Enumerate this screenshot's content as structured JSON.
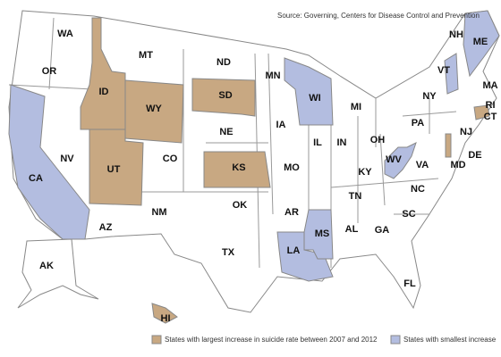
{
  "source": "Source: Governing, Centers for Disease Control and Prevention",
  "states": [
    {
      "label": "WA",
      "color": "#ffffff"
    },
    {
      "label": "OR",
      "color": "#ffffff"
    },
    {
      "label": "CA",
      "color": "#b3bde0"
    },
    {
      "label": "NV",
      "color": "#ffffff"
    },
    {
      "label": "ID",
      "color": "#c8a882"
    },
    {
      "label": "MT",
      "color": "#ffffff"
    },
    {
      "label": "WY",
      "color": "#c8a882"
    },
    {
      "label": "UT",
      "color": "#c8a882"
    },
    {
      "label": "CO",
      "color": "#ffffff"
    },
    {
      "label": "AZ",
      "color": "#ffffff"
    },
    {
      "label": "NM",
      "color": "#ffffff"
    },
    {
      "label": "ND",
      "color": "#ffffff"
    },
    {
      "label": "SD",
      "color": "#c8a882"
    },
    {
      "label": "NE",
      "color": "#ffffff"
    },
    {
      "label": "KS",
      "color": "#c8a882"
    },
    {
      "label": "OK",
      "color": "#ffffff"
    },
    {
      "label": "TX",
      "color": "#ffffff"
    },
    {
      "label": "MN",
      "color": "#ffffff"
    },
    {
      "label": "IA",
      "color": "#ffffff"
    },
    {
      "label": "MO",
      "color": "#ffffff"
    },
    {
      "label": "AR",
      "color": "#ffffff"
    },
    {
      "label": "LA",
      "color": "#b3bde0"
    },
    {
      "label": "WI",
      "color": "#b3bde0"
    },
    {
      "label": "IL",
      "color": "#ffffff"
    },
    {
      "label": "MS",
      "color": "#b3bde0"
    },
    {
      "label": "AL",
      "color": "#ffffff"
    },
    {
      "label": "MI",
      "color": "#ffffff"
    },
    {
      "label": "IN",
      "color": "#ffffff"
    },
    {
      "label": "KY",
      "color": "#ffffff"
    },
    {
      "label": "TN",
      "color": "#ffffff"
    },
    {
      "label": "OH",
      "color": "#ffffff"
    },
    {
      "label": "GA",
      "color": "#ffffff"
    },
    {
      "label": "FL",
      "color": "#ffffff"
    },
    {
      "label": "SC",
      "color": "#ffffff"
    },
    {
      "label": "NC",
      "color": "#ffffff"
    },
    {
      "label": "WV",
      "color": "#b3bde0"
    },
    {
      "label": "VA",
      "color": "#ffffff"
    },
    {
      "label": "PA",
      "color": "#ffffff"
    },
    {
      "label": "NY",
      "color": "#ffffff"
    },
    {
      "label": "VT",
      "color": "#b3bde0"
    },
    {
      "label": "NH",
      "color": "#ffffff"
    },
    {
      "label": "ME",
      "color": "#b3bde0"
    },
    {
      "label": "MA",
      "color": "#ffffff"
    },
    {
      "label": "RI",
      "color": "#ffffff"
    },
    {
      "label": "CT",
      "color": "#c8a882"
    },
    {
      "label": "NJ",
      "color": "#ffffff"
    },
    {
      "label": "DE",
      "color": "#c8a882"
    },
    {
      "label": "MD",
      "color": "#ffffff"
    },
    {
      "label": "AK",
      "color": "#ffffff"
    },
    {
      "label": "HI",
      "color": "#c8a882"
    }
  ],
  "legend": [
    {
      "label": "States with largest increase in suicide rate between 2007 and 2012",
      "color": "#c8a882"
    },
    {
      "label": "States with smallest increase",
      "color": "#b3bde0"
    }
  ]
}
